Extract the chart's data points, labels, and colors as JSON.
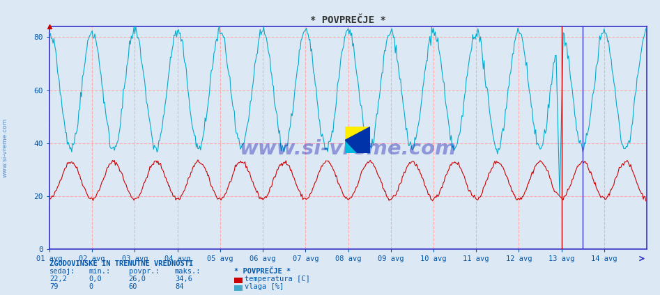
{
  "title": "* POVPREČJE *",
  "bg_color": "#dce9f5",
  "line_color_temp": "#cc0000",
  "line_color_vlaga": "#00aacc",
  "grid_color": "#ffaaaa",
  "axis_color": "#3333cc",
  "text_color": "#0055aa",
  "ylim": [
    0,
    84
  ],
  "xlim": [
    0,
    672
  ],
  "x_ticks": [
    0,
    48,
    96,
    144,
    192,
    240,
    288,
    336,
    384,
    432,
    480,
    528,
    576,
    624
  ],
  "x_tick_labels": [
    "01 avg",
    "02 avg",
    "03 avg",
    "04 avg",
    "05 avg",
    "06 avg",
    "07 avg",
    "08 avg",
    "09 avg",
    "10 avg",
    "11 avg",
    "12 avg",
    "13 avg",
    "14 avg"
  ],
  "y_ticks": [
    0,
    20,
    40,
    60,
    80
  ],
  "info_header": "ZGODOVINSKE IN TRENUTNE VREDNOSTI",
  "col_headers": [
    "sedaj:",
    "min.:",
    "povpr.:",
    "maks.:",
    "* POVPREČJE *"
  ],
  "temp_stats": [
    "22,2",
    "0,0",
    "26,0",
    "34,6"
  ],
  "vlaga_stats": [
    "79",
    "0",
    "60",
    "84"
  ],
  "temp_label": "temperatura [C]",
  "vlaga_label": "vlaga [%]",
  "watermark": "www.si-vreme.com",
  "n_points": 672,
  "temp_base": 26,
  "temp_amp": 7,
  "vlaga_base": 60,
  "vlaga_amp": 22,
  "period": 48,
  "vline_red": 576,
  "vline_blue": 600
}
